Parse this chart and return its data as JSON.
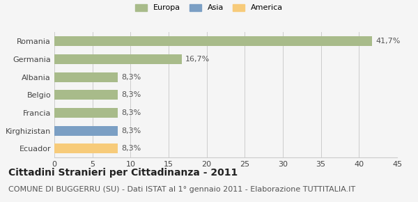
{
  "categories": [
    "Romania",
    "Germania",
    "Albania",
    "Belgio",
    "Francia",
    "Kirghizistan",
    "Ecuador"
  ],
  "values": [
    41.7,
    16.7,
    8.3,
    8.3,
    8.3,
    8.3,
    8.3
  ],
  "labels": [
    "41,7%",
    "16,7%",
    "8,3%",
    "8,3%",
    "8,3%",
    "8,3%",
    "8,3%"
  ],
  "colors": [
    "#a8bb8a",
    "#a8bb8a",
    "#a8bb8a",
    "#a8bb8a",
    "#a8bb8a",
    "#7b9fc4",
    "#f7cb7a"
  ],
  "legend": [
    {
      "label": "Europa",
      "color": "#a8bb8a"
    },
    {
      "label": "Asia",
      "color": "#7b9fc4"
    },
    {
      "label": "America",
      "color": "#f7cb7a"
    }
  ],
  "xlim": [
    0,
    45
  ],
  "xticks": [
    0,
    5,
    10,
    15,
    20,
    25,
    30,
    35,
    40,
    45
  ],
  "title": "Cittadini Stranieri per Cittadinanza - 2011",
  "subtitle": "COMUNE DI BUGGERRU (SU) - Dati ISTAT al 1° gennaio 2011 - Elaborazione TUTTITALIA.IT",
  "background_color": "#f5f5f5",
  "bar_height": 0.55,
  "title_fontsize": 10,
  "subtitle_fontsize": 8,
  "label_fontsize": 8,
  "tick_fontsize": 8
}
